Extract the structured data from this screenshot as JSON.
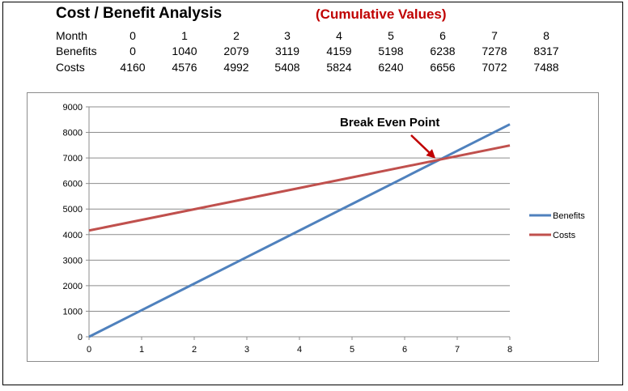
{
  "header": {
    "title": "Cost / Benefit Analysis",
    "subtitle": "(Cumulative Values)"
  },
  "table": {
    "row_labels": [
      "Month",
      "Benefits",
      "Costs"
    ],
    "months": [
      "0",
      "1",
      "2",
      "3",
      "4",
      "5",
      "6",
      "7",
      "8"
    ],
    "benefits": [
      "0",
      "1040",
      "2079",
      "3119",
      "4159",
      "5198",
      "6238",
      "7278",
      "8317"
    ],
    "costs": [
      "4160",
      "4576",
      "4992",
      "5408",
      "5824",
      "6240",
      "6656",
      "7072",
      "7488"
    ]
  },
  "chart_data": {
    "type": "line",
    "title": "",
    "xlabel": "",
    "ylabel": "",
    "x": [
      0,
      1,
      2,
      3,
      4,
      5,
      6,
      7,
      8
    ],
    "series": [
      {
        "name": "Benefits",
        "color": "#4f81bd",
        "values": [
          0,
          1040,
          2079,
          3119,
          4159,
          5198,
          6238,
          7278,
          8317
        ]
      },
      {
        "name": "Costs",
        "color": "#c0504d",
        "values": [
          4160,
          4576,
          4992,
          5408,
          5824,
          6240,
          6656,
          7072,
          7488
        ]
      }
    ],
    "xlim": [
      0,
      8
    ],
    "ylim": [
      0,
      9000
    ],
    "x_ticks": [
      "0",
      "1",
      "2",
      "3",
      "4",
      "5",
      "6",
      "7",
      "8"
    ],
    "y_ticks": [
      "0",
      "1000",
      "2000",
      "3000",
      "4000",
      "5000",
      "6000",
      "7000",
      "8000",
      "9000"
    ],
    "grid": true,
    "legend_position": "right",
    "annotation": {
      "text": "Break Even Point",
      "x": 6.62,
      "y": 6914,
      "color": "#c00000"
    }
  }
}
